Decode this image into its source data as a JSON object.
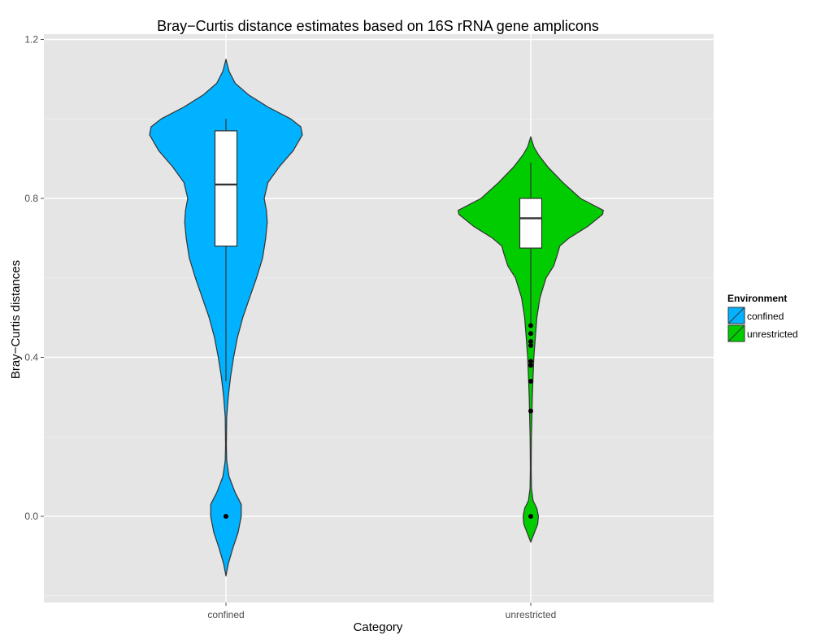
{
  "chart_data": {
    "type": "violin",
    "title": "Bray−Curtis distance estimates based on 16S rRNA gene amplicons",
    "xlabel": "Category",
    "ylabel": "Bray−Curtis distances",
    "categories": [
      "confined",
      "unrestricted"
    ],
    "ylim": [
      -0.21,
      1.22
    ],
    "yticks": [
      "0.0",
      "0.4",
      "0.8",
      "1.2"
    ],
    "ytick_values": [
      0.0,
      0.4,
      0.8,
      1.2
    ],
    "grid": true,
    "legend": {
      "title": "Environment",
      "position": "right",
      "entries": [
        {
          "label": "confined",
          "color": "#00B2FF"
        },
        {
          "label": "unrestricted",
          "color": "#00CC00"
        }
      ]
    },
    "series": [
      {
        "name": "confined",
        "color": "#00B2FF",
        "violin_ymin": -0.15,
        "violin_ymax": 1.15,
        "violin_profile": [
          [
            -0.15,
            0.0
          ],
          [
            -0.12,
            0.03
          ],
          [
            -0.08,
            0.09
          ],
          [
            -0.04,
            0.16
          ],
          [
            0.0,
            0.2
          ],
          [
            0.03,
            0.2
          ],
          [
            0.06,
            0.12
          ],
          [
            0.1,
            0.04
          ],
          [
            0.14,
            0.01
          ],
          [
            0.18,
            0.005
          ],
          [
            0.25,
            0.01
          ],
          [
            0.3,
            0.03
          ],
          [
            0.35,
            0.06
          ],
          [
            0.4,
            0.1
          ],
          [
            0.45,
            0.15
          ],
          [
            0.5,
            0.22
          ],
          [
            0.55,
            0.31
          ],
          [
            0.6,
            0.4
          ],
          [
            0.65,
            0.48
          ],
          [
            0.7,
            0.52
          ],
          [
            0.74,
            0.54
          ],
          [
            0.77,
            0.53
          ],
          [
            0.8,
            0.5
          ],
          [
            0.84,
            0.55
          ],
          [
            0.88,
            0.7
          ],
          [
            0.92,
            0.88
          ],
          [
            0.96,
            1.0
          ],
          [
            0.98,
            0.98
          ],
          [
            1.0,
            0.85
          ],
          [
            1.03,
            0.55
          ],
          [
            1.06,
            0.3
          ],
          [
            1.09,
            0.12
          ],
          [
            1.12,
            0.04
          ],
          [
            1.15,
            0.0
          ]
        ],
        "box": {
          "q1": 0.68,
          "median": 0.835,
          "q3": 0.97,
          "whisker_low": 0.34,
          "whisker_high": 1.0
        },
        "outliers": [
          0.0
        ]
      },
      {
        "name": "unrestricted",
        "color": "#00CC00",
        "violin_ymin": -0.065,
        "violin_ymax": 0.955,
        "violin_profile": [
          [
            -0.065,
            0.0
          ],
          [
            -0.04,
            0.05
          ],
          [
            -0.02,
            0.09
          ],
          [
            0.0,
            0.1
          ],
          [
            0.02,
            0.08
          ],
          [
            0.04,
            0.03
          ],
          [
            0.07,
            0.01
          ],
          [
            0.12,
            0.005
          ],
          [
            0.2,
            0.008
          ],
          [
            0.25,
            0.015
          ],
          [
            0.3,
            0.02
          ],
          [
            0.35,
            0.03
          ],
          [
            0.4,
            0.04
          ],
          [
            0.45,
            0.06
          ],
          [
            0.5,
            0.08
          ],
          [
            0.55,
            0.12
          ],
          [
            0.6,
            0.2
          ],
          [
            0.63,
            0.3
          ],
          [
            0.66,
            0.35
          ],
          [
            0.68,
            0.38
          ],
          [
            0.7,
            0.5
          ],
          [
            0.73,
            0.75
          ],
          [
            0.76,
            0.94
          ],
          [
            0.77,
            0.95
          ],
          [
            0.8,
            0.65
          ],
          [
            0.84,
            0.42
          ],
          [
            0.88,
            0.22
          ],
          [
            0.91,
            0.1
          ],
          [
            0.93,
            0.04
          ],
          [
            0.955,
            0.0
          ]
        ],
        "box": {
          "q1": 0.675,
          "median": 0.75,
          "q3": 0.8,
          "whisker_low": 0.48,
          "whisker_high": 0.89
        },
        "outliers": [
          0.48,
          0.46,
          0.44,
          0.43,
          0.39,
          0.38,
          0.34,
          0.265,
          0.0
        ]
      }
    ]
  }
}
